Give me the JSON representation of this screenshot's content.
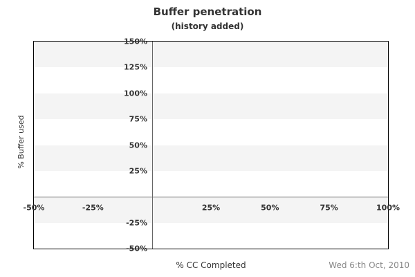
{
  "chart_data": {
    "type": "scatter",
    "title": "Buffer penetration",
    "subtitle": "(history added)",
    "xlabel": "% CC Completed",
    "ylabel": "% Buffer used",
    "xlim": [
      -50,
      100
    ],
    "ylim": [
      -50,
      150
    ],
    "x_ticks": [
      {
        "value": -50,
        "label": "-50%"
      },
      {
        "value": -25,
        "label": "-25%"
      },
      {
        "value": 25,
        "label": "25%"
      },
      {
        "value": 50,
        "label": "50%"
      },
      {
        "value": 75,
        "label": "75%"
      },
      {
        "value": 100,
        "label": "100%"
      }
    ],
    "y_ticks": [
      {
        "value": 150,
        "label": "150%"
      },
      {
        "value": 125,
        "label": "125%"
      },
      {
        "value": 100,
        "label": "100%"
      },
      {
        "value": 75,
        "label": "75%"
      },
      {
        "value": 50,
        "label": "50%"
      },
      {
        "value": 25,
        "label": "25%"
      },
      {
        "value": -25,
        "label": "-25%"
      },
      {
        "value": -50,
        "label": "-50%"
      }
    ],
    "band_step": 25,
    "grid": "alternating-horizontal-bands-starting-gray-at-top",
    "legend": "none",
    "series": []
  },
  "footer": {
    "date": "Wed 6:th Oct, 2010"
  },
  "colors": {
    "background": "#ffffff",
    "stripe": "#f4f4f4",
    "axis_line": "#666666",
    "plot_border": "#000000",
    "text": "#333333",
    "muted_text": "#888888"
  }
}
